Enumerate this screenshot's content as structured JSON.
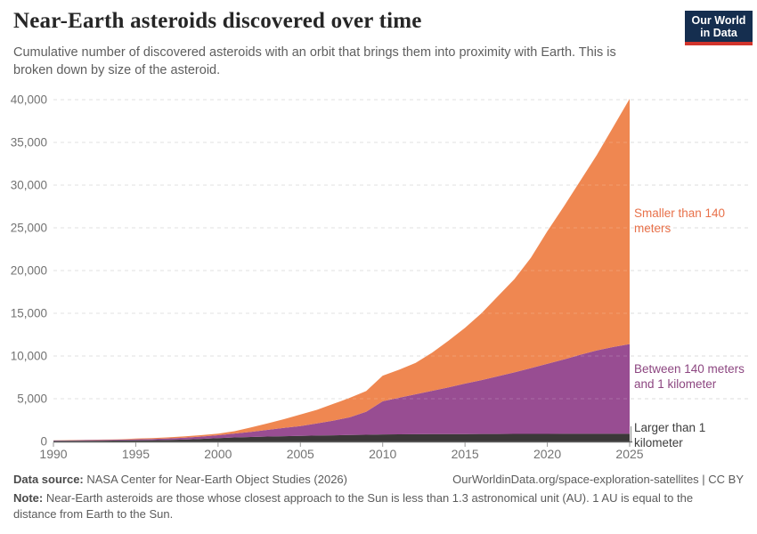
{
  "header": {
    "title": "Near-Earth asteroids discovered over time",
    "subtitle": "Cumulative number of discovered asteroids with an orbit that brings them into proximity with Earth. This is broken down by size of the asteroid.",
    "logo": {
      "line1": "Our World",
      "line2": "in Data",
      "bg_color": "#152e4f",
      "bar_color": "#d1342c"
    }
  },
  "annotations": [
    {
      "label": "Smaller than 140 meters",
      "color": "#e8714a"
    },
    {
      "label": "Between 140 meters and 1 kilometer",
      "color": "#8c4680"
    },
    {
      "label": "Larger than 1 kilometer",
      "color": "#3d3d3d"
    }
  ],
  "footer": {
    "data_source_label": "Data source:",
    "data_source_text": " NASA Center for Near-Earth Object Studies (2026)",
    "link_text": "OurWorldinData.org/space-exploration-satellites | CC BY",
    "note_label": "Note:",
    "note_text": " Near-Earth asteroids are those whose closest approach to the Sun is less than 1.3 astronomical unit (AU). 1 AU is equal to the distance from Earth to the Sun."
  },
  "chart_data": {
    "type": "area",
    "stacked": true,
    "title": "Near-Earth asteroids discovered over time",
    "xlabel": "",
    "ylabel": "",
    "x": [
      1990,
      1991,
      1992,
      1993,
      1994,
      1995,
      1996,
      1997,
      1998,
      1999,
      2000,
      2001,
      2002,
      2003,
      2004,
      2005,
      2006,
      2007,
      2008,
      2009,
      2010,
      2011,
      2012,
      2013,
      2014,
      2015,
      2016,
      2017,
      2018,
      2019,
      2020,
      2021,
      2022,
      2023,
      2024,
      2025
    ],
    "series": [
      {
        "name": "Larger than 1 kilometer",
        "color": "#3b3838",
        "values": [
          60,
          72,
          82,
          95,
          110,
          130,
          150,
          175,
          220,
          300,
          400,
          470,
          520,
          570,
          610,
          650,
          690,
          720,
          750,
          780,
          820,
          830,
          840,
          850,
          858,
          866,
          872,
          878,
          883,
          887,
          890,
          893,
          895,
          897,
          899,
          900
        ]
      },
      {
        "name": "Between 140 meters and 1 kilometer",
        "color": "#984d92",
        "values": [
          50,
          60,
          70,
          85,
          100,
          120,
          145,
          175,
          220,
          270,
          330,
          460,
          610,
          780,
          970,
          1150,
          1420,
          1720,
          2070,
          2700,
          3880,
          4280,
          4680,
          5080,
          5480,
          5900,
          6300,
          6750,
          7200,
          7700,
          8200,
          8700,
          9250,
          9750,
          10150,
          10500
        ]
      },
      {
        "name": "Smaller than 140 meters",
        "color": "#ef8751",
        "values": [
          30,
          30,
          32,
          35,
          45,
          80,
          105,
          130,
          160,
          170,
          190,
          270,
          520,
          750,
          1020,
          1350,
          1590,
          1960,
          2280,
          2420,
          3000,
          3290,
          3680,
          4470,
          5460,
          6530,
          7830,
          9370,
          10920,
          12910,
          15510,
          17910,
          20360,
          22850,
          25750,
          28700
        ]
      }
    ],
    "ylim": [
      0,
      40000
    ],
    "yticks": [
      0,
      5000,
      10000,
      15000,
      20000,
      25000,
      30000,
      35000,
      40000
    ],
    "xticks": [
      1990,
      1995,
      2000,
      2005,
      2010,
      2015,
      2020,
      2025
    ],
    "grid": "horizontal-dashed",
    "legend_position": "right-annotations",
    "axis_color": "#5e5e5e",
    "grid_color": "#dcdcdc",
    "tick_label_color": "#737373"
  }
}
